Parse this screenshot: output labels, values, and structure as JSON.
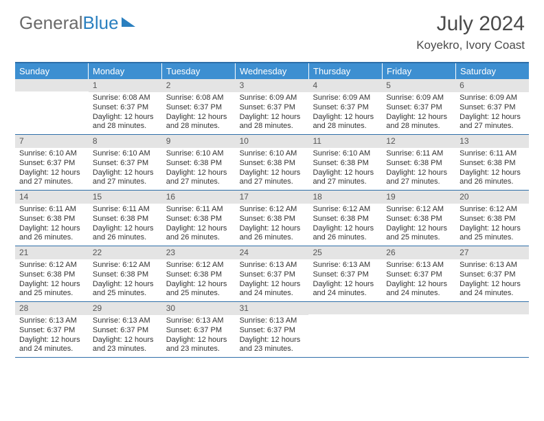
{
  "logo": {
    "word1": "General",
    "word2": "Blue"
  },
  "title": "July 2024",
  "location": "Koyekro, Ivory Coast",
  "colors": {
    "header_bar": "#3d8fd1",
    "week_border": "#2d6ea8",
    "daynum_bg": "#e4e4e4",
    "text": "#333333",
    "title_text": "#4a4a4a",
    "logo_gray": "#6a6a6a",
    "logo_blue": "#2a7fbf",
    "bg": "#ffffff"
  },
  "days_of_week": [
    "Sunday",
    "Monday",
    "Tuesday",
    "Wednesday",
    "Thursday",
    "Friday",
    "Saturday"
  ],
  "weeks": [
    [
      {
        "n": "",
        "lines": []
      },
      {
        "n": "1",
        "lines": [
          "Sunrise: 6:08 AM",
          "Sunset: 6:37 PM",
          "Daylight: 12 hours",
          "and 28 minutes."
        ]
      },
      {
        "n": "2",
        "lines": [
          "Sunrise: 6:08 AM",
          "Sunset: 6:37 PM",
          "Daylight: 12 hours",
          "and 28 minutes."
        ]
      },
      {
        "n": "3",
        "lines": [
          "Sunrise: 6:09 AM",
          "Sunset: 6:37 PM",
          "Daylight: 12 hours",
          "and 28 minutes."
        ]
      },
      {
        "n": "4",
        "lines": [
          "Sunrise: 6:09 AM",
          "Sunset: 6:37 PM",
          "Daylight: 12 hours",
          "and 28 minutes."
        ]
      },
      {
        "n": "5",
        "lines": [
          "Sunrise: 6:09 AM",
          "Sunset: 6:37 PM",
          "Daylight: 12 hours",
          "and 28 minutes."
        ]
      },
      {
        "n": "6",
        "lines": [
          "Sunrise: 6:09 AM",
          "Sunset: 6:37 PM",
          "Daylight: 12 hours",
          "and 27 minutes."
        ]
      }
    ],
    [
      {
        "n": "7",
        "lines": [
          "Sunrise: 6:10 AM",
          "Sunset: 6:37 PM",
          "Daylight: 12 hours",
          "and 27 minutes."
        ]
      },
      {
        "n": "8",
        "lines": [
          "Sunrise: 6:10 AM",
          "Sunset: 6:37 PM",
          "Daylight: 12 hours",
          "and 27 minutes."
        ]
      },
      {
        "n": "9",
        "lines": [
          "Sunrise: 6:10 AM",
          "Sunset: 6:38 PM",
          "Daylight: 12 hours",
          "and 27 minutes."
        ]
      },
      {
        "n": "10",
        "lines": [
          "Sunrise: 6:10 AM",
          "Sunset: 6:38 PM",
          "Daylight: 12 hours",
          "and 27 minutes."
        ]
      },
      {
        "n": "11",
        "lines": [
          "Sunrise: 6:10 AM",
          "Sunset: 6:38 PM",
          "Daylight: 12 hours",
          "and 27 minutes."
        ]
      },
      {
        "n": "12",
        "lines": [
          "Sunrise: 6:11 AM",
          "Sunset: 6:38 PM",
          "Daylight: 12 hours",
          "and 27 minutes."
        ]
      },
      {
        "n": "13",
        "lines": [
          "Sunrise: 6:11 AM",
          "Sunset: 6:38 PM",
          "Daylight: 12 hours",
          "and 26 minutes."
        ]
      }
    ],
    [
      {
        "n": "14",
        "lines": [
          "Sunrise: 6:11 AM",
          "Sunset: 6:38 PM",
          "Daylight: 12 hours",
          "and 26 minutes."
        ]
      },
      {
        "n": "15",
        "lines": [
          "Sunrise: 6:11 AM",
          "Sunset: 6:38 PM",
          "Daylight: 12 hours",
          "and 26 minutes."
        ]
      },
      {
        "n": "16",
        "lines": [
          "Sunrise: 6:11 AM",
          "Sunset: 6:38 PM",
          "Daylight: 12 hours",
          "and 26 minutes."
        ]
      },
      {
        "n": "17",
        "lines": [
          "Sunrise: 6:12 AM",
          "Sunset: 6:38 PM",
          "Daylight: 12 hours",
          "and 26 minutes."
        ]
      },
      {
        "n": "18",
        "lines": [
          "Sunrise: 6:12 AM",
          "Sunset: 6:38 PM",
          "Daylight: 12 hours",
          "and 26 minutes."
        ]
      },
      {
        "n": "19",
        "lines": [
          "Sunrise: 6:12 AM",
          "Sunset: 6:38 PM",
          "Daylight: 12 hours",
          "and 25 minutes."
        ]
      },
      {
        "n": "20",
        "lines": [
          "Sunrise: 6:12 AM",
          "Sunset: 6:38 PM",
          "Daylight: 12 hours",
          "and 25 minutes."
        ]
      }
    ],
    [
      {
        "n": "21",
        "lines": [
          "Sunrise: 6:12 AM",
          "Sunset: 6:38 PM",
          "Daylight: 12 hours",
          "and 25 minutes."
        ]
      },
      {
        "n": "22",
        "lines": [
          "Sunrise: 6:12 AM",
          "Sunset: 6:38 PM",
          "Daylight: 12 hours",
          "and 25 minutes."
        ]
      },
      {
        "n": "23",
        "lines": [
          "Sunrise: 6:12 AM",
          "Sunset: 6:38 PM",
          "Daylight: 12 hours",
          "and 25 minutes."
        ]
      },
      {
        "n": "24",
        "lines": [
          "Sunrise: 6:13 AM",
          "Sunset: 6:37 PM",
          "Daylight: 12 hours",
          "and 24 minutes."
        ]
      },
      {
        "n": "25",
        "lines": [
          "Sunrise: 6:13 AM",
          "Sunset: 6:37 PM",
          "Daylight: 12 hours",
          "and 24 minutes."
        ]
      },
      {
        "n": "26",
        "lines": [
          "Sunrise: 6:13 AM",
          "Sunset: 6:37 PM",
          "Daylight: 12 hours",
          "and 24 minutes."
        ]
      },
      {
        "n": "27",
        "lines": [
          "Sunrise: 6:13 AM",
          "Sunset: 6:37 PM",
          "Daylight: 12 hours",
          "and 24 minutes."
        ]
      }
    ],
    [
      {
        "n": "28",
        "lines": [
          "Sunrise: 6:13 AM",
          "Sunset: 6:37 PM",
          "Daylight: 12 hours",
          "and 24 minutes."
        ]
      },
      {
        "n": "29",
        "lines": [
          "Sunrise: 6:13 AM",
          "Sunset: 6:37 PM",
          "Daylight: 12 hours",
          "and 23 minutes."
        ]
      },
      {
        "n": "30",
        "lines": [
          "Sunrise: 6:13 AM",
          "Sunset: 6:37 PM",
          "Daylight: 12 hours",
          "and 23 minutes."
        ]
      },
      {
        "n": "31",
        "lines": [
          "Sunrise: 6:13 AM",
          "Sunset: 6:37 PM",
          "Daylight: 12 hours",
          "and 23 minutes."
        ]
      },
      {
        "n": "",
        "lines": []
      },
      {
        "n": "",
        "lines": []
      },
      {
        "n": "",
        "lines": []
      }
    ]
  ]
}
